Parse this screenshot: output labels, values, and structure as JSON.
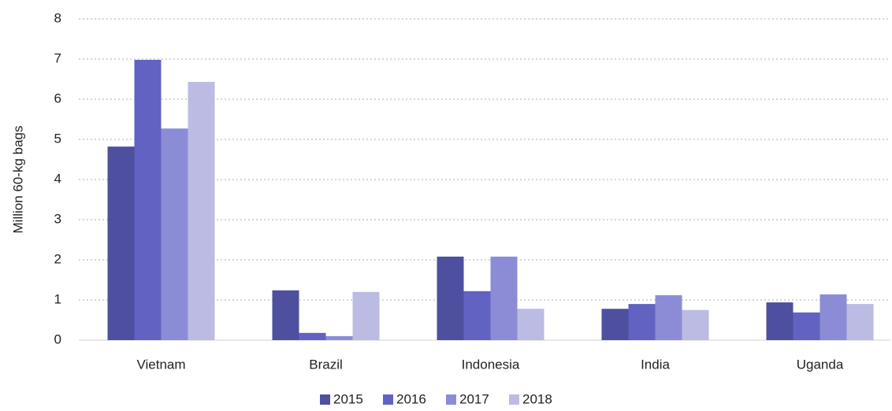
{
  "chart_data": {
    "type": "bar",
    "y_label": "Million 60-kg bags",
    "categories": [
      "Vietnam",
      "Brazil",
      "Indonesia",
      "India",
      "Uganda"
    ],
    "series": [
      {
        "name": "2015",
        "color": "#4f4f9f",
        "values": [
          4.82,
          1.24,
          2.08,
          0.78,
          0.94
        ]
      },
      {
        "name": "2016",
        "color": "#6262c2",
        "values": [
          6.98,
          0.18,
          1.22,
          0.9,
          0.69
        ]
      },
      {
        "name": "2017",
        "color": "#8c8cd6",
        "values": [
          5.27,
          0.1,
          2.08,
          1.12,
          1.14
        ]
      },
      {
        "name": "2018",
        "color": "#bbbbe3",
        "values": [
          6.43,
          1.2,
          0.78,
          0.75,
          0.9
        ]
      }
    ],
    "ylim": [
      0,
      8
    ],
    "yticks": [
      0,
      1,
      2,
      3,
      4,
      5,
      6,
      7,
      8
    ],
    "grid": true,
    "legend": "bottom"
  }
}
